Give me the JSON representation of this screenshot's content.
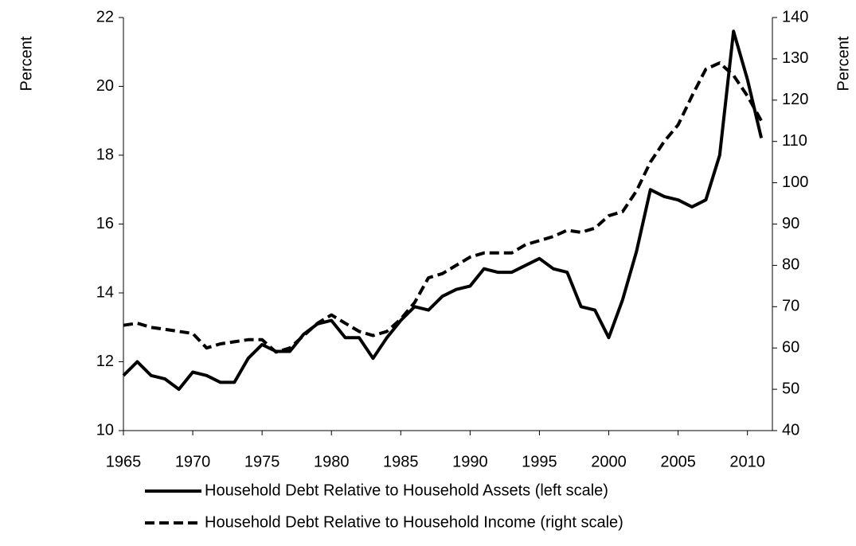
{
  "chart_data": {
    "type": "line",
    "ylabel": "Percent",
    "y2label": "Percent",
    "x": [
      1965,
      1966,
      1967,
      1968,
      1969,
      1970,
      1971,
      1972,
      1973,
      1974,
      1975,
      1976,
      1977,
      1978,
      1979,
      1980,
      1981,
      1982,
      1983,
      1984,
      1985,
      1986,
      1987,
      1988,
      1989,
      1990,
      1991,
      1992,
      1993,
      1994,
      1995,
      1996,
      1997,
      1998,
      1999,
      2000,
      2001,
      2002,
      2003,
      2004,
      2005,
      2006,
      2007,
      2008,
      2009,
      2010,
      2011
    ],
    "series": [
      {
        "name": "Household Debt Relative to Household Assets (left scale)",
        "color": "#000000",
        "line_style": "solid",
        "axis": "y",
        "values": [
          11.6,
          12.0,
          11.6,
          11.5,
          11.2,
          11.7,
          11.6,
          11.4,
          11.4,
          12.1,
          12.5,
          12.3,
          12.3,
          12.8,
          13.1,
          13.2,
          12.7,
          12.7,
          12.1,
          12.7,
          13.2,
          13.6,
          13.5,
          13.9,
          14.1,
          14.2,
          14.7,
          14.6,
          14.6,
          14.8,
          15.0,
          14.7,
          14.6,
          13.6,
          13.5,
          12.7,
          13.8,
          15.2,
          17.0,
          16.8,
          16.7,
          16.5,
          16.7,
          18.0,
          21.6,
          20.2,
          18.5
        ]
      },
      {
        "name": "Household Debt Relative to Household Income (right scale)",
        "color": "#000000",
        "line_style": "dashed",
        "axis": "y2",
        "values": [
          65.5,
          66,
          65,
          64.5,
          64,
          63.5,
          60,
          61,
          61.5,
          62,
          62,
          59,
          60,
          63,
          66,
          68,
          66,
          64,
          63,
          64,
          67,
          71,
          77,
          78,
          80,
          82,
          83,
          83,
          83,
          85,
          86,
          87,
          88.5,
          88,
          89,
          92,
          93,
          98,
          105,
          110,
          114,
          121,
          127.5,
          129,
          126,
          121,
          115
        ]
      }
    ],
    "xlim": [
      1965,
      2011.8
    ],
    "xticks": [
      1965,
      1970,
      1975,
      1980,
      1985,
      1990,
      1995,
      2000,
      2005,
      2010
    ],
    "ylim": [
      10,
      22
    ],
    "yticks": [
      10,
      12,
      14,
      16,
      18,
      20,
      22
    ],
    "y2lim": [
      40,
      140
    ],
    "y2ticks": [
      40,
      50,
      60,
      70,
      80,
      90,
      100,
      110,
      120,
      130,
      140
    ]
  }
}
